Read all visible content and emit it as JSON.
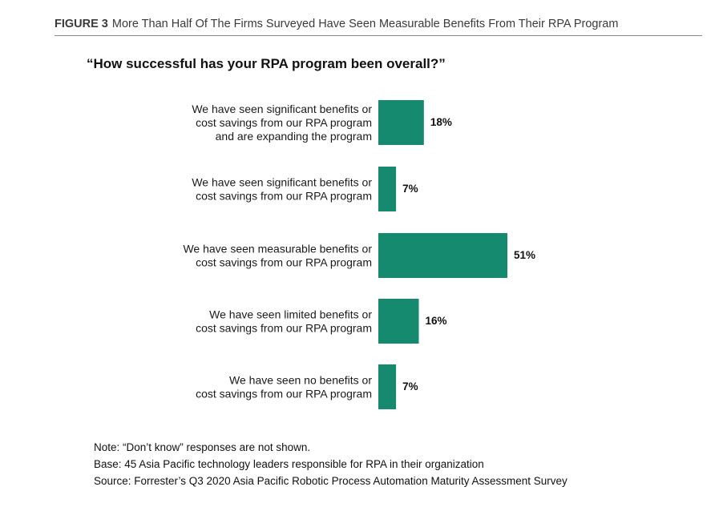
{
  "figure": {
    "number": "FIGURE 3",
    "title": "More Than Half Of The Firms Surveyed Have Seen Measurable Benefits From Their RPA Program"
  },
  "question": "“How successful has your RPA program been overall?”",
  "chart_data": {
    "type": "bar",
    "orientation": "horizontal",
    "categories": [
      [
        "We have seen significant benefits or",
        "cost savings from our RPA program",
        "and are expanding the program"
      ],
      [
        "We have seen significant benefits or",
        "cost savings from our RPA program"
      ],
      [
        "We have seen measurable benefits or",
        "cost savings from our RPA program"
      ],
      [
        "We have seen limited benefits or",
        "cost savings from our RPA program"
      ],
      [
        "We have seen no benefits or",
        "cost savings from our RPA program"
      ]
    ],
    "values": [
      18,
      7,
      51,
      16,
      7
    ],
    "value_labels": [
      "18%",
      "7%",
      "51%",
      "16%",
      "7%"
    ],
    "unit": "%",
    "bar_color": "#158a6e",
    "grid": false,
    "legend": "none"
  },
  "footer": {
    "note": "Note: “Don’t know” responses are not shown.",
    "base": "Base: 45 Asia Pacific technology leaders responsible for RPA in their organization",
    "source": "Source: Forrester’s Q3 2020 Asia Pacific Robotic Process Automation Maturity Assessment Survey"
  }
}
